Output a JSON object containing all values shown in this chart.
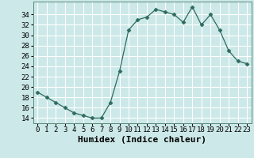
{
  "x": [
    0,
    1,
    2,
    3,
    4,
    5,
    6,
    7,
    8,
    9,
    10,
    11,
    12,
    13,
    14,
    15,
    16,
    17,
    18,
    19,
    20,
    21,
    22,
    23
  ],
  "y": [
    19,
    18,
    17,
    16,
    15,
    14.5,
    14,
    14,
    17,
    23,
    31,
    33,
    33.5,
    35,
    34.5,
    34,
    32.5,
    35.5,
    32,
    34,
    31,
    27,
    25,
    24.5
  ],
  "xlabel": "Humidex (Indice chaleur)",
  "xlim": [
    -0.5,
    23.5
  ],
  "ylim": [
    13,
    36.5
  ],
  "yticks": [
    14,
    16,
    18,
    20,
    22,
    24,
    26,
    28,
    30,
    32,
    34
  ],
  "xticks": [
    0,
    1,
    2,
    3,
    4,
    5,
    6,
    7,
    8,
    9,
    10,
    11,
    12,
    13,
    14,
    15,
    16,
    17,
    18,
    19,
    20,
    21,
    22,
    23
  ],
  "line_color": "#2e6b5e",
  "marker": "D",
  "marker_size": 2.5,
  "bg_color": "#cce8e8",
  "grid_color": "#ffffff",
  "xlabel_fontsize": 8,
  "tick_fontsize": 6.5
}
